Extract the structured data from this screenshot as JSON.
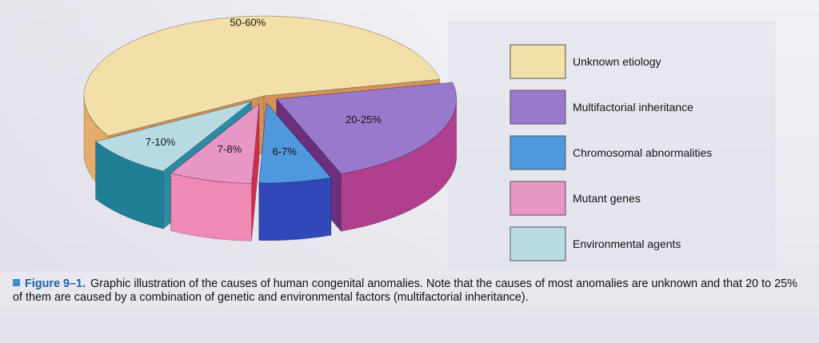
{
  "chart_data": {
    "type": "pie",
    "style": "3d-exploded",
    "slices": [
      {
        "key": "unknown",
        "name": "Unknown etiology",
        "label": "50-60%",
        "value": 55,
        "top_color": "#f2e0a8",
        "side_color": "#e5ad6c",
        "side_dark": "#d4915a"
      },
      {
        "key": "multifactorial",
        "name": "Multifactorial inheritance",
        "label": "20-25%",
        "value": 22.5,
        "top_color": "#9a78cb",
        "side_color": "#b0408f",
        "side_dark": "#6b2f7e"
      },
      {
        "key": "chromosomal",
        "name": "Chromosomal abnormalities",
        "label": "6-7%",
        "value": 6.5,
        "top_color": "#4f98dd",
        "side_color": "#3148b8",
        "side_dark": "#232d8c"
      },
      {
        "key": "mutant",
        "name": "Mutant genes",
        "label": "7-8%",
        "value": 7.5,
        "top_color": "#e896c6",
        "side_color": "#f08ab4",
        "side_dark": "#cf2f4e"
      },
      {
        "key": "environmental",
        "name": "Environmental agents",
        "label": "7-10%",
        "value": 8.5,
        "top_color": "#b7dbe3",
        "side_color": "#1f7f96",
        "side_dark": "#2d8aa3"
      }
    ],
    "legend": {
      "placement": "right",
      "entries": [
        "Unknown etiology",
        "Multifactorial inheritance",
        "Chromosomal abnormalities",
        "Mutant genes",
        "Environmental agents"
      ]
    }
  },
  "caption": {
    "figure_label": "Figure 9–1.",
    "text": "Graphic illustration of the causes of human congenital anomalies. Note that the causes of most anomalies are unknown and that 20 to 25% of them are caused by a combination of genetic and environmental factors (multifactorial inheritance)."
  }
}
